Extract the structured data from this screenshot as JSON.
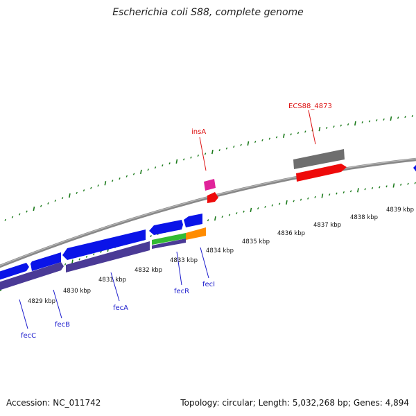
{
  "title": "Escherichia coli S88, complete genome",
  "footer": {
    "accession": "Accession: NC_011742",
    "summary": "Topology: circular; Length: 5,032,268 bp; Genes: 4,894"
  },
  "colors": {
    "backbone": "#888888",
    "ticks": "#1a7a1a",
    "gene_blue": "#0a14e8",
    "gene_purple": "#4a3a96",
    "gene_label_blue": "#1a1acc",
    "gene_label_red": "#dd1111",
    "insA_magenta": "#e0239a",
    "red": "#ee0a0a",
    "gray": "#6e6e6e",
    "green": "#33bb33",
    "orange": "#ff8c00"
  },
  "scale_labels": [
    "4829 kbp",
    "4830 kbp",
    "4831 kbp",
    "4832 kbp",
    "4833 kbp",
    "4834 kbp",
    "4835 kbp",
    "4836 kbp",
    "4837 kbp",
    "4838 kbp",
    "4839 kbp"
  ],
  "gene_labels": [
    {
      "name": "fecC",
      "color": "blue"
    },
    {
      "name": "fecB",
      "color": "blue"
    },
    {
      "name": "fecA",
      "color": "blue"
    },
    {
      "name": "fecR",
      "color": "blue"
    },
    {
      "name": "fecI",
      "color": "blue"
    },
    {
      "name": "insA",
      "color": "red"
    },
    {
      "name": "ECS88_4873",
      "color": "red"
    }
  ]
}
